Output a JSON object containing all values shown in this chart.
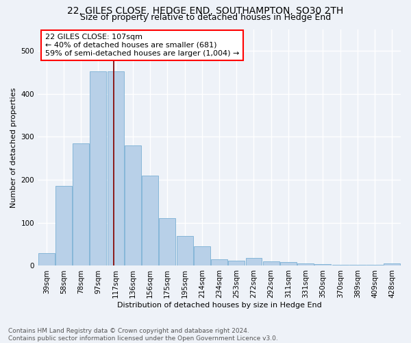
{
  "title": "22, GILES CLOSE, HEDGE END, SOUTHAMPTON, SO30 2TH",
  "subtitle": "Size of property relative to detached houses in Hedge End",
  "xlabel": "Distribution of detached houses by size in Hedge End",
  "ylabel": "Number of detached properties",
  "footer_line1": "Contains HM Land Registry data © Crown copyright and database right 2024.",
  "footer_line2": "Contains public sector information licensed under the Open Government Licence v3.0.",
  "categories": [
    "39sqm",
    "58sqm",
    "78sqm",
    "97sqm",
    "117sqm",
    "136sqm",
    "156sqm",
    "175sqm",
    "195sqm",
    "214sqm",
    "234sqm",
    "253sqm",
    "272sqm",
    "292sqm",
    "311sqm",
    "331sqm",
    "350sqm",
    "370sqm",
    "389sqm",
    "409sqm",
    "428sqm"
  ],
  "values": [
    30,
    185,
    285,
    452,
    452,
    280,
    210,
    110,
    70,
    45,
    15,
    12,
    18,
    10,
    8,
    5,
    4,
    2,
    2,
    2,
    5
  ],
  "bar_color": "#b8d0e8",
  "bar_edge_color": "#7aafd4",
  "vline_x_index": 3.88,
  "annotation_text": "22 GILES CLOSE: 107sqm\n← 40% of detached houses are smaller (681)\n59% of semi-detached houses are larger (1,004) →",
  "annotation_box_facecolor": "white",
  "annotation_box_edgecolor": "red",
  "vline_color": "#8b1a1a",
  "ylim_max": 550,
  "background_color": "#eef2f8",
  "grid_color": "white",
  "title_fontsize": 10,
  "subtitle_fontsize": 9,
  "axis_fontsize": 8,
  "tick_fontsize": 7.5,
  "footer_fontsize": 6.5,
  "annotation_fontsize": 8
}
